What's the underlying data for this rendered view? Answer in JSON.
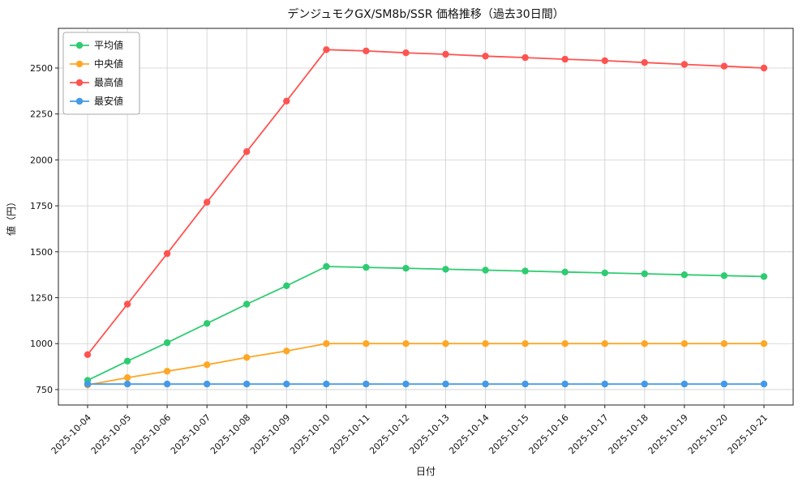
{
  "chart_data": {
    "type": "line",
    "title": "デンジュモクGX/SM8b/SSR 価格推移（過去30日間）",
    "xlabel": "日付",
    "ylabel": "値（円）",
    "x": [
      "2025-10-04",
      "2025-10-05",
      "2025-10-06",
      "2025-10-07",
      "2025-10-08",
      "2025-10-09",
      "2025-10-10",
      "2025-10-11",
      "2025-10-12",
      "2025-10-13",
      "2025-10-14",
      "2025-10-15",
      "2025-10-16",
      "2025-10-17",
      "2025-10-18",
      "2025-10-19",
      "2025-10-20",
      "2025-10-21"
    ],
    "ylim": [
      666,
      2716
    ],
    "yticks": [
      750,
      1000,
      1250,
      1500,
      1750,
      2000,
      2250,
      2500
    ],
    "grid": true,
    "legend_position": "top-left",
    "background_color": "#ffffff",
    "grid_color": "#cfcfcf",
    "series": [
      {
        "name": "平均値",
        "color": "#2ecc71",
        "marker": "circle",
        "values": [
          800,
          905,
          1005,
          1110,
          1215,
          1315,
          1420,
          1415,
          1410,
          1405,
          1400,
          1395,
          1390,
          1385,
          1380,
          1375,
          1370,
          1365
        ]
      },
      {
        "name": "中央値",
        "color": "#ffa726",
        "marker": "circle",
        "values": [
          775,
          815,
          850,
          885,
          925,
          960,
          1000,
          1000,
          1000,
          1000,
          1000,
          1000,
          1000,
          1000,
          1000,
          1000,
          1000,
          1000
        ]
      },
      {
        "name": "最高値",
        "color": "#ff5350",
        "marker": "circle",
        "values": [
          940,
          1215,
          1490,
          1770,
          2045,
          2320,
          2600,
          2593,
          2583,
          2575,
          2565,
          2557,
          2548,
          2540,
          2530,
          2520,
          2510,
          2500
        ]
      },
      {
        "name": "最安値",
        "color": "#4599e9",
        "marker": "circle",
        "values": [
          780,
          780,
          780,
          780,
          780,
          780,
          780,
          780,
          780,
          780,
          780,
          780,
          780,
          780,
          780,
          780,
          780,
          780
        ]
      }
    ]
  }
}
